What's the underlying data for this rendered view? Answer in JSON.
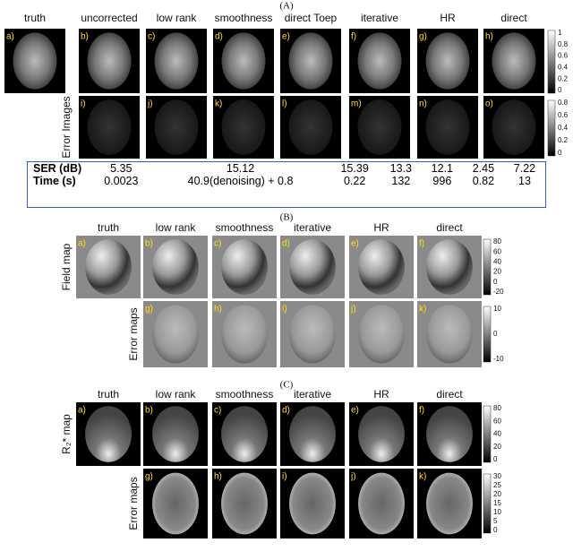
{
  "panel_a": {
    "label": "(A)",
    "columns": [
      "truth",
      "uncorrected",
      "low rank",
      "smoothness",
      "direct Toep",
      "iterative",
      "HR",
      "direct"
    ],
    "top_labels": [
      "a)",
      "b)",
      "c)",
      "d)",
      "e)",
      "f)",
      "g)",
      "h)"
    ],
    "bottom_labels": [
      "i)",
      "j)",
      "k)",
      "l)",
      "m)",
      "n)",
      "o)"
    ],
    "row_label": "Error Images",
    "colorbar_top": [
      "1",
      "0.8",
      "0.6",
      "0.4",
      "0.2",
      "0"
    ],
    "colorbar_bottom": [
      "0.8",
      "0.6",
      "0.4",
      "0.2",
      "0"
    ],
    "table": {
      "rows": [
        {
          "label": "SER (dB)",
          "values": [
            "5.35",
            "15.12",
            "15.39",
            "13.3",
            "12.1",
            "2.45",
            "7.22"
          ]
        },
        {
          "label": "Time (s)",
          "values": [
            "0.0023",
            "40.9(denoising) + 0.8",
            "0.22",
            "132",
            "996",
            "0.82",
            "13"
          ]
        }
      ]
    }
  },
  "panel_b": {
    "label": "(B)",
    "columns": [
      "truth",
      "low rank",
      "smoothness",
      "iterative",
      "HR",
      "direct"
    ],
    "top_labels": [
      "a)",
      "b)",
      "c)",
      "d)",
      "e)",
      "f)"
    ],
    "bottom_labels": [
      "g)",
      "h)",
      "i)",
      "j)",
      "k)"
    ],
    "row_labels": [
      "Field map",
      "Error maps"
    ],
    "colorbar_top": [
      "80",
      "60",
      "40",
      "20",
      "0",
      "-20"
    ],
    "colorbar_bottom": [
      "10",
      "0",
      "-10"
    ]
  },
  "panel_c": {
    "label": "(C)",
    "columns": [
      "truth",
      "low rank",
      "smoothness",
      "iterative",
      "HR",
      "direct"
    ],
    "top_labels": [
      "a)",
      "b)",
      "c)",
      "d)",
      "e)",
      "f)"
    ],
    "bottom_labels": [
      "g)",
      "h)",
      "i)",
      "j)",
      "k)"
    ],
    "row_labels": [
      "R₂* map",
      "Error maps"
    ],
    "colorbar_top": [
      "80",
      "60",
      "40",
      "20",
      "0"
    ],
    "colorbar_bottom": [
      "30",
      "25",
      "20",
      "15",
      "10",
      "5",
      "0"
    ]
  }
}
